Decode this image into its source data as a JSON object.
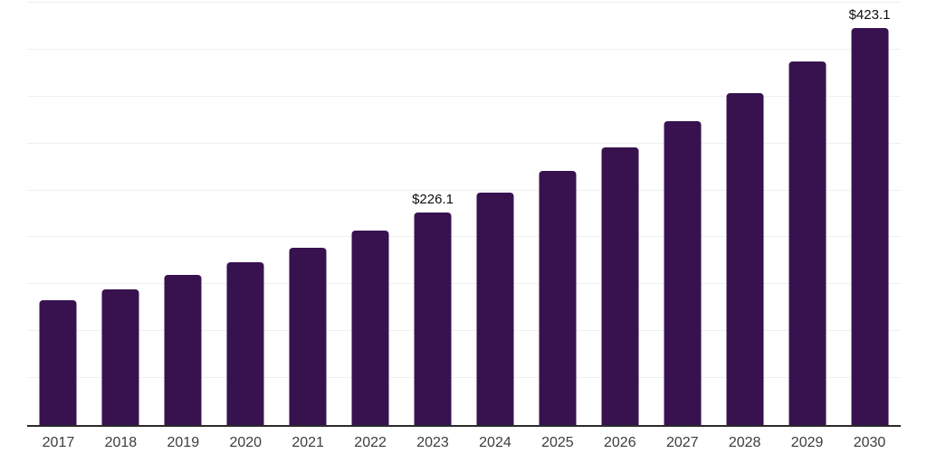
{
  "chart_data": {
    "type": "bar",
    "categories": [
      "2017",
      "2018",
      "2019",
      "2020",
      "2021",
      "2022",
      "2023",
      "2024",
      "2025",
      "2026",
      "2027",
      "2028",
      "2029",
      "2030"
    ],
    "values": [
      133.2,
      144.8,
      160.2,
      173.8,
      189.2,
      207.5,
      226.1,
      247.3,
      270.4,
      295.7,
      323.4,
      353.7,
      386.9,
      423.1
    ],
    "data_labels": [
      "",
      "",
      "",
      "",
      "",
      "",
      "$226.1",
      "",
      "",
      "",
      "",
      "",
      "",
      "$423.1"
    ],
    "title": "",
    "xlabel": "",
    "ylabel": "",
    "ylim": [
      0,
      450
    ],
    "ytick_step": 50,
    "grid": true,
    "legend": false,
    "y_axis_labels_shown": false,
    "label_prefix": "$"
  },
  "style": {
    "bar_color": "#38124f",
    "gridline_color": "#f0f0f0",
    "axis_line_color": "#2b2b2b",
    "tick_label_color": "#3d3d3d",
    "data_label_color": "#0d0d0d",
    "background_color": "#ffffff"
  }
}
